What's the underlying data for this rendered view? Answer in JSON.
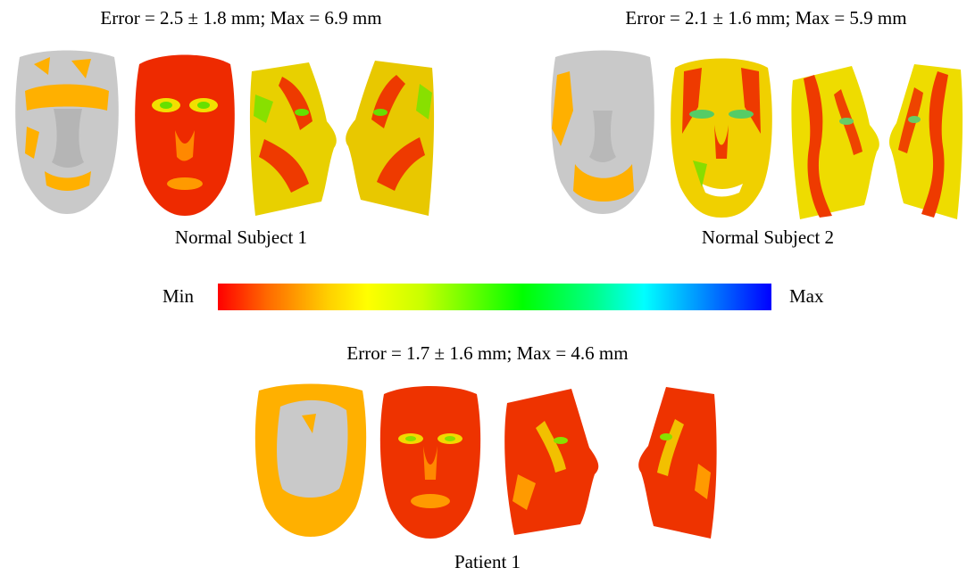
{
  "panels": {
    "normal_subject_1": {
      "error_text": "Error = 2.5 ± 1.8 mm; Max = 6.9 mm",
      "caption": "Normal Subject 1"
    },
    "normal_subject_2": {
      "error_text": "Error = 2.1 ± 1.6 mm; Max = 5.9 mm",
      "caption": "Normal Subject 2"
    },
    "patient_1": {
      "error_text": "Error = 1.7 ± 1.6 mm; Max = 4.6 mm",
      "caption": "Patient 1"
    }
  },
  "colorbar": {
    "min_label": "Min",
    "max_label": "Max",
    "colors": [
      "#ff0000",
      "#ffff00",
      "#00ff00",
      "#00ffff",
      "#0000ff"
    ]
  },
  "face_colors": {
    "gray": "#c8c8c8",
    "orange": "#ffb000",
    "red": "#ee2200",
    "yellow": "#f2e000",
    "green": "#66e000"
  }
}
